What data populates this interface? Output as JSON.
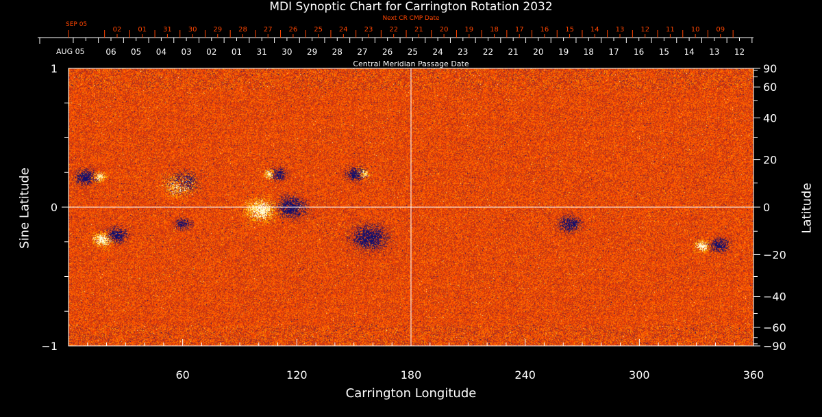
{
  "chart_data": {
    "type": "heatmap",
    "title": "MDI Synoptic Chart for Carrington Rotation 2032",
    "xlabel": "Carrington Longitude",
    "ylabel_left": "Sine Latitude",
    "ylabel_right": "Latitude",
    "top_axis_label": "Central Meridian Passage Date",
    "top2_axis_label": "Next CR CMP Date",
    "xlim": [
      0,
      360
    ],
    "ylim": [
      -1,
      1
    ],
    "x_ticks": [
      "60",
      "120",
      "180",
      "240",
      "300",
      "360"
    ],
    "x_tick_values": [
      60,
      120,
      180,
      240,
      300,
      360
    ],
    "y_left_ticks": [
      "1",
      "0",
      "−1"
    ],
    "y_left_tick_values": [
      1,
      0,
      -1
    ],
    "y_right_ticks": [
      "90",
      "60",
      "40",
      "20",
      "0",
      "−20",
      "−40",
      "−60",
      "−90"
    ],
    "y_right_tick_values": [
      90,
      60,
      40,
      20,
      0,
      -20,
      -40,
      -60,
      -90
    ],
    "cmp_start_label": "AUG 05",
    "cmp_dates": [
      "06",
      "05",
      "04",
      "03",
      "02",
      "01",
      "31",
      "30",
      "29",
      "28",
      "27",
      "26",
      "25",
      "24",
      "23",
      "22",
      "21",
      "20",
      "19",
      "18",
      "17",
      "16",
      "15",
      "14",
      "13",
      "12"
    ],
    "next_start_label": "SEP 05",
    "next_dates": [
      "02",
      "01",
      "31",
      "30",
      "29",
      "28",
      "27",
      "26",
      "25",
      "24",
      "23",
      "22",
      "21",
      "20",
      "19",
      "18",
      "17",
      "16",
      "15",
      "14",
      "13",
      "12",
      "11",
      "10",
      "09"
    ],
    "colors": {
      "background": "#ff4a00",
      "positive": "#ffffc0",
      "negative": "#10106a",
      "next_axis": "#ff4500",
      "axis": "#ffffff"
    },
    "gridlines": {
      "longitude": [
        180
      ],
      "sine_latitude": [
        0
      ]
    },
    "features": [
      {
        "lon": 9,
        "sinlat": 0.22,
        "polarity": "negative",
        "size": 1.0
      },
      {
        "lon": 16,
        "sinlat": 0.22,
        "polarity": "positive",
        "size": 0.6
      },
      {
        "lon": 60,
        "sinlat": 0.18,
        "polarity": "negative",
        "size": 1.3
      },
      {
        "lon": 58,
        "sinlat": 0.16,
        "polarity": "positive",
        "size": 1.3
      },
      {
        "lon": 110,
        "sinlat": 0.24,
        "polarity": "negative",
        "size": 0.8
      },
      {
        "lon": 106,
        "sinlat": 0.24,
        "polarity": "positive",
        "size": 0.6
      },
      {
        "lon": 151,
        "sinlat": 0.24,
        "polarity": "negative",
        "size": 0.9
      },
      {
        "lon": 155,
        "sinlat": 0.24,
        "polarity": "positive",
        "size": 0.6
      },
      {
        "lon": 25,
        "sinlat": -0.2,
        "polarity": "negative",
        "size": 1.0
      },
      {
        "lon": 18,
        "sinlat": -0.23,
        "polarity": "positive",
        "size": 0.9
      },
      {
        "lon": 60,
        "sinlat": -0.12,
        "polarity": "negative",
        "size": 0.7
      },
      {
        "lon": 117,
        "sinlat": 0.0,
        "polarity": "negative",
        "size": 1.4
      },
      {
        "lon": 101,
        "sinlat": -0.02,
        "polarity": "positive",
        "size": 1.4
      },
      {
        "lon": 158,
        "sinlat": -0.22,
        "polarity": "negative",
        "size": 1.6
      },
      {
        "lon": 263,
        "sinlat": -0.12,
        "polarity": "negative",
        "size": 1.0
      },
      {
        "lon": 342,
        "sinlat": -0.27,
        "polarity": "negative",
        "size": 0.9
      },
      {
        "lon": 333,
        "sinlat": -0.28,
        "polarity": "positive",
        "size": 0.7
      }
    ]
  }
}
